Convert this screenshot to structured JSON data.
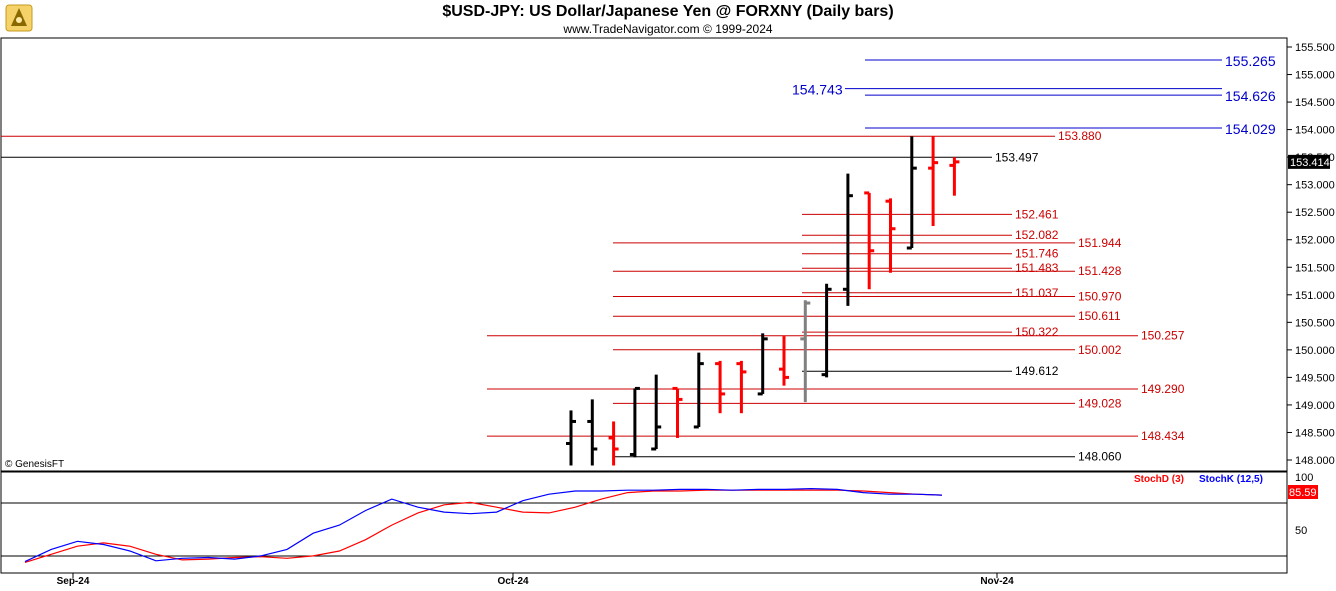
{
  "header": {
    "title": "$USD-JPY:  US Dollar/Japanese Yen @ FORXNY  (Daily bars)",
    "subtitle": "www.TradeNavigator.com © 1999-2024"
  },
  "watermark": "© GenesisFT",
  "colors": {
    "up": "#000000",
    "down": "#ff0000",
    "neutral": "#808080",
    "projection": "#0000cc",
    "level": "#cc0000"
  },
  "chart_data": [
    {
      "type": "ohlc",
      "ylim": [
        147.9,
        155.6
      ],
      "y_ticks": [
        "155.500",
        "155.000",
        "154.500",
        "154.000",
        "153.500",
        "153.000",
        "152.500",
        "152.000",
        "151.500",
        "151.000",
        "150.500",
        "150.000",
        "149.500",
        "149.000",
        "148.500",
        "148.000"
      ],
      "last_price": "153.414",
      "x_labels": [
        "Sep-24",
        "Oct-24",
        "Nov-24"
      ],
      "bars": [
        {
          "o": 148.3,
          "h": 148.9,
          "l": 147.9,
          "c": 148.7,
          "color": "up"
        },
        {
          "o": 148.7,
          "h": 149.1,
          "l": 147.9,
          "c": 148.2,
          "color": "up"
        },
        {
          "o": 148.4,
          "h": 148.7,
          "l": 147.9,
          "c": 148.2,
          "color": "down"
        },
        {
          "o": 148.1,
          "h": 149.3,
          "l": 148.05,
          "c": 149.3,
          "color": "up"
        },
        {
          "o": 148.2,
          "h": 149.55,
          "l": 148.2,
          "c": 148.6,
          "color": "up"
        },
        {
          "o": 149.3,
          "h": 149.3,
          "l": 148.4,
          "c": 149.1,
          "color": "down"
        },
        {
          "o": 148.6,
          "h": 149.95,
          "l": 148.6,
          "c": 149.75,
          "color": "up"
        },
        {
          "o": 149.75,
          "h": 149.8,
          "l": 148.85,
          "c": 149.2,
          "color": "down"
        },
        {
          "o": 149.75,
          "h": 149.8,
          "l": 148.85,
          "c": 149.6,
          "color": "down"
        },
        {
          "o": 149.2,
          "h": 150.3,
          "l": 149.2,
          "c": 150.2,
          "color": "up"
        },
        {
          "o": 149.65,
          "h": 150.25,
          "l": 149.35,
          "c": 149.5,
          "color": "down"
        },
        {
          "o": 150.2,
          "h": 150.9,
          "l": 149.05,
          "c": 150.85,
          "color": "neutral"
        },
        {
          "o": 149.55,
          "h": 151.2,
          "l": 149.5,
          "c": 151.1,
          "color": "up"
        },
        {
          "o": 151.1,
          "h": 153.2,
          "l": 150.8,
          "c": 152.8,
          "color": "up"
        },
        {
          "o": 152.85,
          "h": 152.85,
          "l": 151.1,
          "c": 151.8,
          "color": "down"
        },
        {
          "o": 152.7,
          "h": 152.75,
          "l": 151.4,
          "c": 152.2,
          "color": "down"
        },
        {
          "o": 151.85,
          "h": 153.88,
          "l": 151.85,
          "c": 153.3,
          "color": "up"
        },
        {
          "o": 153.3,
          "h": 153.88,
          "l": 152.25,
          "c": 153.4,
          "color": "down"
        },
        {
          "o": 153.35,
          "h": 153.5,
          "l": 152.8,
          "c": 153.414,
          "color": "down"
        }
      ],
      "levels": [
        {
          "value": 155.265,
          "label": "155.265",
          "color": "projection",
          "large": true
        },
        {
          "value": 154.743,
          "label": "154.743",
          "color": "projection",
          "large": true,
          "left": true
        },
        {
          "value": 154.626,
          "label": "154.626",
          "color": "projection",
          "large": true
        },
        {
          "value": 154.029,
          "label": "154.029",
          "color": "projection",
          "large": true
        },
        {
          "value": 153.88,
          "label": "153.880",
          "color": "level"
        },
        {
          "value": 153.497,
          "label": "153.497",
          "color": "up"
        },
        {
          "value": 152.461,
          "label": "152.461",
          "color": "level"
        },
        {
          "value": 152.082,
          "label": "152.082",
          "color": "level"
        },
        {
          "value": 151.944,
          "label": "151.944",
          "color": "level"
        },
        {
          "value": 151.746,
          "label": "151.746",
          "color": "level"
        },
        {
          "value": 151.483,
          "label": "151.483",
          "color": "level"
        },
        {
          "value": 151.428,
          "label": "151.428",
          "color": "level"
        },
        {
          "value": 151.037,
          "label": "151.037",
          "color": "level"
        },
        {
          "value": 150.97,
          "label": "150.970",
          "color": "level"
        },
        {
          "value": 150.611,
          "label": "150.611",
          "color": "level"
        },
        {
          "value": 150.322,
          "label": "150.322",
          "color": "level"
        },
        {
          "value": 150.257,
          "label": "150.257",
          "color": "level"
        },
        {
          "value": 150.002,
          "label": "150.002",
          "color": "level"
        },
        {
          "value": 149.612,
          "label": "149.612",
          "color": "up"
        },
        {
          "value": 149.29,
          "label": "149.290",
          "color": "level"
        },
        {
          "value": 149.028,
          "label": "149.028",
          "color": "level"
        },
        {
          "value": 148.434,
          "label": "148.434",
          "color": "level"
        },
        {
          "value": 148.06,
          "label": "148.060",
          "color": "up"
        }
      ]
    },
    {
      "type": "line",
      "ylim": [
        0,
        100
      ],
      "y_ticks": [
        "100",
        "50"
      ],
      "last_value": "85.59",
      "legend": [
        {
          "name": "StochD (3)",
          "color": "#ff0000"
        },
        {
          "name": "StochK (12,5)",
          "color": "#0000ff"
        }
      ],
      "series": [
        {
          "name": "StochD (3)",
          "values": [
            2,
            12,
            22,
            26,
            22,
            12,
            5,
            6,
            8,
            9,
            7,
            10,
            16,
            30,
            48,
            63,
            73,
            76,
            70,
            64,
            63,
            70,
            80,
            88,
            90,
            90,
            91,
            91,
            91,
            91,
            91,
            91,
            90,
            88,
            86,
            85
          ]
        },
        {
          "name": "StochK (12,5)",
          "values": [
            3,
            18,
            28,
            24,
            16,
            4,
            7,
            8,
            6,
            10,
            18,
            38,
            48,
            66,
            80,
            70,
            64,
            62,
            64,
            78,
            86,
            90,
            90,
            91,
            91,
            92,
            92,
            91,
            92,
            92,
            93,
            92,
            88,
            86,
            86,
            85
          ]
        }
      ]
    }
  ]
}
